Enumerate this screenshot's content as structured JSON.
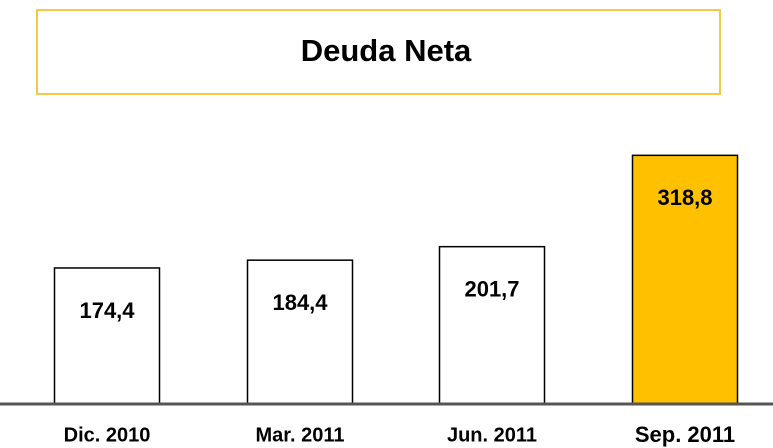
{
  "chart_data": {
    "type": "bar",
    "title": "Deuda Neta",
    "categories": [
      "Dic. 2010",
      "Mar. 2011",
      "Jun. 2011",
      "Sep. 2011"
    ],
    "values": [
      174.4,
      184.4,
      201.7,
      318.8
    ],
    "value_labels": [
      "174,4",
      "184,4",
      "201,7",
      "318,8"
    ],
    "colors": [
      "#ffffff",
      "#ffffff",
      "#ffffff",
      "#ffc000"
    ]
  }
}
